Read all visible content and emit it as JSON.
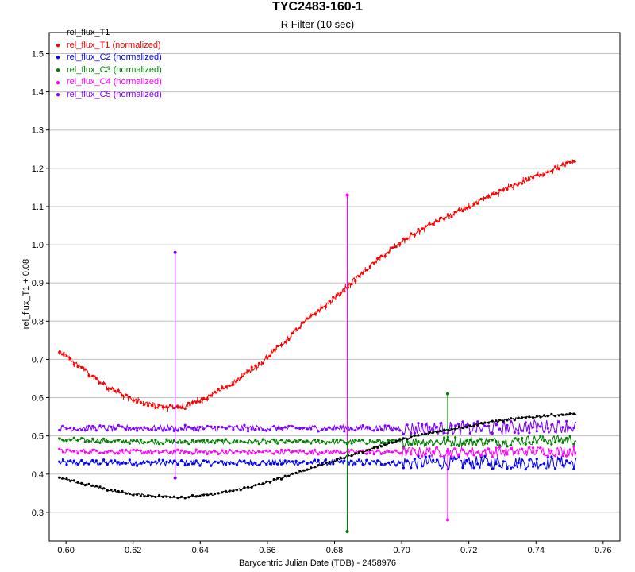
{
  "chart_data": {
    "type": "scatter",
    "title": "TYC2483-160-1",
    "subtitle": "R Filter (10 sec)",
    "xlabel": "Barycentric Julian Date (TDB) - 2458976",
    "ylabel": "rel_flux_T1 + 0.08",
    "xlim": [
      0.595,
      0.765
    ],
    "ylim": [
      0.225,
      1.555
    ],
    "x_ticks": [
      "0.60",
      "0.62",
      "0.64",
      "0.66",
      "0.68",
      "0.70",
      "0.72",
      "0.74",
      "0.76"
    ],
    "y_ticks": [
      "0.3",
      "0.4",
      "0.5",
      "0.6",
      "0.7",
      "0.8",
      "0.9",
      "1.0",
      "1.1",
      "1.2",
      "1.3",
      "1.4",
      "1.5"
    ],
    "grid": true,
    "legend": {
      "position": "top-left",
      "header": "rel_flux_T1",
      "entries": [
        {
          "label": "rel_flux_T1 (normalized)",
          "color": "#ff0000"
        },
        {
          "label": "rel_flux_C2 (normalized)",
          "color": "#0000ff"
        },
        {
          "label": "rel_flux_C3 (normalized)",
          "color": "#008000"
        },
        {
          "label": "rel_flux_C4 (normalized)",
          "color": "#ff00ff"
        },
        {
          "label": "rel_flux_C5 (normalized)",
          "color": "#8000ff"
        }
      ]
    },
    "series": [
      {
        "name": "rel_flux_T1",
        "color": "#000000",
        "x": [
          0.598,
          0.605,
          0.612,
          0.62,
          0.628,
          0.635,
          0.642,
          0.65,
          0.658,
          0.665,
          0.672,
          0.68,
          0.688,
          0.695,
          0.702,
          0.71,
          0.718,
          0.725,
          0.732,
          0.74,
          0.746,
          0.752
        ],
        "y": [
          0.39,
          0.375,
          0.36,
          0.347,
          0.342,
          0.34,
          0.345,
          0.357,
          0.373,
          0.392,
          0.413,
          0.435,
          0.458,
          0.478,
          0.495,
          0.51,
          0.523,
          0.534,
          0.543,
          0.55,
          0.555,
          0.557
        ]
      },
      {
        "name": "rel_flux_T1 (normalized)",
        "color": "#ff0000",
        "x": [
          0.598,
          0.605,
          0.612,
          0.62,
          0.628,
          0.635,
          0.642,
          0.65,
          0.658,
          0.665,
          0.672,
          0.68,
          0.688,
          0.695,
          0.702,
          0.71,
          0.718,
          0.725,
          0.732,
          0.74,
          0.746,
          0.752
        ],
        "y": [
          0.72,
          0.675,
          0.63,
          0.595,
          0.575,
          0.575,
          0.6,
          0.64,
          0.69,
          0.745,
          0.805,
          0.86,
          0.925,
          0.975,
          1.02,
          1.06,
          1.09,
          1.12,
          1.15,
          1.18,
          1.2,
          1.22
        ]
      },
      {
        "name": "rel_flux_C2 (normalized)",
        "color": "#0000ff",
        "x": [
          0.598,
          0.61,
          0.62,
          0.63,
          0.64,
          0.65,
          0.66,
          0.67,
          0.68,
          0.69,
          0.7,
          0.71,
          0.72,
          0.73,
          0.74,
          0.752
        ],
        "y": [
          0.43,
          0.43,
          0.43,
          0.43,
          0.43,
          0.43,
          0.43,
          0.43,
          0.43,
          0.43,
          0.43,
          0.43,
          0.43,
          0.43,
          0.43,
          0.43
        ]
      },
      {
        "name": "rel_flux_C3 (normalized)",
        "color": "#008000",
        "x": [
          0.598,
          0.61,
          0.62,
          0.63,
          0.64,
          0.65,
          0.66,
          0.67,
          0.68,
          0.69,
          0.7,
          0.71,
          0.72,
          0.73,
          0.74,
          0.752
        ],
        "y": [
          0.49,
          0.488,
          0.485,
          0.485,
          0.485,
          0.485,
          0.485,
          0.485,
          0.485,
          0.485,
          0.485,
          0.485,
          0.485,
          0.485,
          0.49,
          0.49
        ]
      },
      {
        "name": "rel_flux_C4 (normalized)",
        "color": "#ff00ff",
        "x": [
          0.598,
          0.61,
          0.62,
          0.63,
          0.64,
          0.65,
          0.66,
          0.67,
          0.68,
          0.69,
          0.7,
          0.71,
          0.72,
          0.73,
          0.74,
          0.752
        ],
        "y": [
          0.46,
          0.46,
          0.458,
          0.458,
          0.458,
          0.458,
          0.458,
          0.458,
          0.458,
          0.458,
          0.458,
          0.458,
          0.458,
          0.458,
          0.46,
          0.46
        ]
      },
      {
        "name": "rel_flux_C5 (normalized)",
        "color": "#8000ff",
        "x": [
          0.598,
          0.61,
          0.62,
          0.63,
          0.64,
          0.65,
          0.66,
          0.67,
          0.68,
          0.69,
          0.7,
          0.71,
          0.72,
          0.73,
          0.74,
          0.752
        ],
        "y": [
          0.52,
          0.52,
          0.52,
          0.52,
          0.52,
          0.52,
          0.52,
          0.52,
          0.52,
          0.52,
          0.52,
          0.52,
          0.52,
          0.52,
          0.525,
          0.525
        ]
      }
    ],
    "spikes": [
      {
        "series": "rel_flux_C5 (normalized)",
        "color": "#8000ff",
        "x": 0.6325,
        "y_min": 0.39,
        "y_max": 0.98
      },
      {
        "series": "rel_flux_C4 (normalized)",
        "color": "#ff00ff",
        "x": 0.6838,
        "y_min": 0.25,
        "y_max": 1.13
      },
      {
        "series": "rel_flux_C3 (normalized)",
        "color": "#008000",
        "x": 0.6838,
        "y_min": 0.25,
        "y_max": 0.48
      },
      {
        "series": "rel_flux_C3 (normalized)",
        "color": "#008000",
        "x": 0.7137,
        "y_min": 0.49,
        "y_max": 0.61
      },
      {
        "series": "rel_flux_C4 (normalized)",
        "color": "#ff00ff",
        "x": 0.7137,
        "y_min": 0.28,
        "y_max": 0.46
      }
    ]
  }
}
